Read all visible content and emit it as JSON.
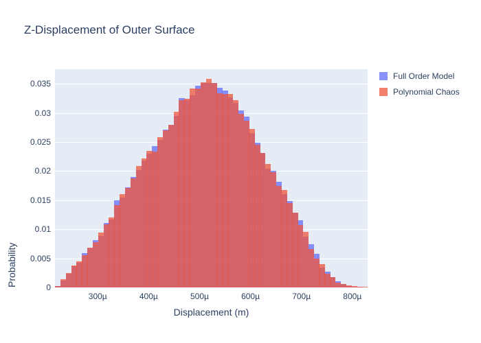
{
  "chart_data": {
    "type": "histogram",
    "barmode": "overlay",
    "title": "Z-Displacement of Outer Surface",
    "xlabel": "Displacement (m)",
    "ylabel": "Probability",
    "plot_bg": "#E5ECF6",
    "text_color": "#2a3f5f",
    "grid": "horizontal white lines, no vertical grid",
    "legend_position": "right-top",
    "ylim": [
      0,
      0.0375
    ],
    "xlim_microns": [
      216,
      830
    ],
    "bin_width_microns": 10.6,
    "y_ticks": [
      {
        "v": 0,
        "label": "0"
      },
      {
        "v": 0.005,
        "label": "0.005"
      },
      {
        "v": 0.01,
        "label": "0.01"
      },
      {
        "v": 0.015,
        "label": "0.015"
      },
      {
        "v": 0.02,
        "label": "0.02"
      },
      {
        "v": 0.025,
        "label": "0.025"
      },
      {
        "v": 0.03,
        "label": "0.03"
      },
      {
        "v": 0.035,
        "label": "0.035"
      }
    ],
    "x_ticks": [
      {
        "microns": 300,
        "label": "300µ"
      },
      {
        "microns": 400,
        "label": "400µ"
      },
      {
        "microns": 500,
        "label": "500µ"
      },
      {
        "microns": 600,
        "label": "600µ"
      },
      {
        "microns": 700,
        "label": "700µ"
      },
      {
        "microns": 800,
        "label": "800µ"
      }
    ],
    "series": [
      {
        "name": "Full Order Model",
        "color": "#636EFA",
        "opacity": 0.75,
        "bin_start_microns": 216,
        "values": [
          0.0002,
          0.0012,
          0.0024,
          0.0037,
          0.0042,
          0.0059,
          0.0067,
          0.0081,
          0.0088,
          0.0111,
          0.0117,
          0.015,
          0.0155,
          0.0172,
          0.019,
          0.0202,
          0.0218,
          0.023,
          0.0243,
          0.0254,
          0.0271,
          0.0279,
          0.0295,
          0.0326,
          0.0322,
          0.033,
          0.0347,
          0.0351,
          0.0351,
          0.0352,
          0.0343,
          0.0339,
          0.0327,
          0.0317,
          0.0304,
          0.0294,
          0.0265,
          0.0249,
          0.0231,
          0.0204,
          0.02,
          0.0182,
          0.016,
          0.0149,
          0.0129,
          0.0115,
          0.0087,
          0.0074,
          0.0058,
          0.0034,
          0.0027,
          0.0018,
          0.0011,
          0.0006,
          0.0002,
          0.0001,
          0.0001,
          0.0
        ]
      },
      {
        "name": "Polynomial Chaos",
        "color": "#EF553B",
        "opacity": 0.75,
        "bin_start_microns": 216,
        "values": [
          0.0002,
          0.0014,
          0.0025,
          0.0038,
          0.0045,
          0.0055,
          0.0068,
          0.0078,
          0.0094,
          0.0108,
          0.012,
          0.0142,
          0.016,
          0.0171,
          0.0188,
          0.0209,
          0.0222,
          0.0235,
          0.0233,
          0.0258,
          0.027,
          0.028,
          0.0302,
          0.0322,
          0.0324,
          0.0342,
          0.0342,
          0.0353,
          0.0358,
          0.0352,
          0.0334,
          0.0332,
          0.0332,
          0.0322,
          0.0298,
          0.0286,
          0.0273,
          0.0245,
          0.0231,
          0.0212,
          0.0198,
          0.0174,
          0.0168,
          0.0145,
          0.0128,
          0.0107,
          0.0095,
          0.0066,
          0.005,
          0.004,
          0.0024,
          0.0018,
          0.0008,
          0.0006,
          0.0003,
          0.0002,
          0.0001,
          0.0001
        ]
      }
    ]
  }
}
